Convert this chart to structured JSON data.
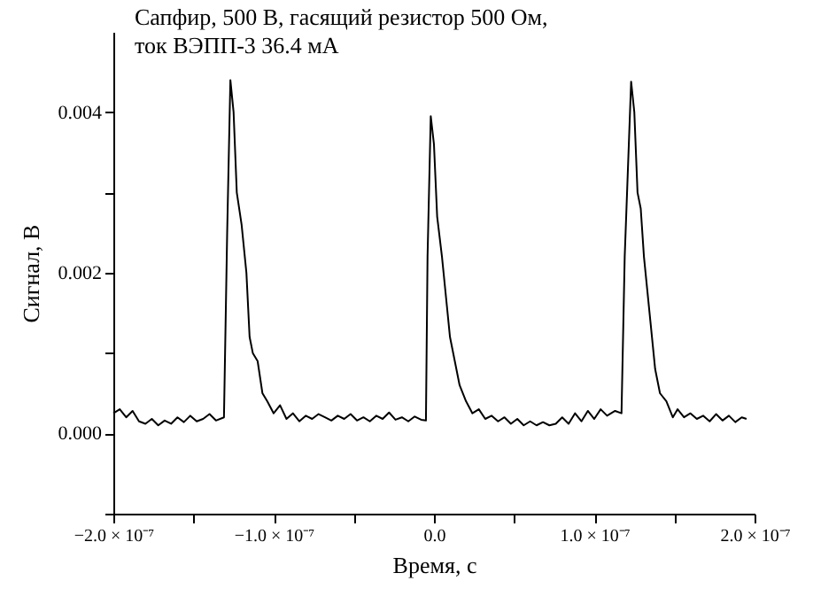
{
  "chart_data": {
    "type": "line",
    "xlabel": "Время, с",
    "ylabel": "Сигнал, В",
    "annotations": [
      "Сапфир, 500 В, гасящий резистор 500 Ом,\nток ВЭПП-3 36.4 мА"
    ],
    "xlim": [
      -2e-07,
      2e-07
    ],
    "ylim": [
      -0.001,
      0.005
    ],
    "xticks": [
      {
        "value": -2e-07,
        "label": "−2.0 × 10⁻⁷"
      },
      {
        "value": -1.5e-07,
        "label": null
      },
      {
        "value": -1e-07,
        "label": "−1.0 × 10⁻⁷"
      },
      {
        "value": -5e-08,
        "label": null
      },
      {
        "value": 0,
        "label": "0.0"
      },
      {
        "value": 5e-08,
        "label": null
      },
      {
        "value": 1e-07,
        "label": "1.0 × 10⁻⁷"
      },
      {
        "value": 1.5e-07,
        "label": null
      },
      {
        "value": 2e-07,
        "label": "2.0 × 10⁻⁷"
      }
    ],
    "yticks": [
      {
        "value": -0.001,
        "label": null
      },
      {
        "value": 0,
        "label": "0.000"
      },
      {
        "value": 0.001,
        "label": null
      },
      {
        "value": 0.002,
        "label": "0.002"
      },
      {
        "value": 0.003,
        "label": null
      },
      {
        "value": 0.004,
        "label": "0.004"
      }
    ],
    "grid": false,
    "marker": "none",
    "line_style": "solid",
    "series": [
      {
        "color": "#000000",
        "x": [
          -2e-07,
          -1.96e-07,
          -1.92e-07,
          -1.88e-07,
          -1.84e-07,
          -1.8e-07,
          -1.76e-07,
          -1.72e-07,
          -1.68e-07,
          -1.64e-07,
          -1.6e-07,
          -1.56e-07,
          -1.52e-07,
          -1.48e-07,
          -1.44e-07,
          -1.4e-07,
          -1.36e-07,
          -1.31e-07,
          -1.29e-07,
          -1.27e-07,
          -1.25e-07,
          -1.23e-07,
          -1.2e-07,
          -1.17e-07,
          -1.15e-07,
          -1.13e-07,
          -1.1e-07,
          -1.07e-07,
          -1.04e-07,
          -1e-07,
          -9.6e-08,
          -9.2e-08,
          -8.8e-08,
          -8.4e-08,
          -8e-08,
          -7.6e-08,
          -7.2e-08,
          -6.8e-08,
          -6.4e-08,
          -6e-08,
          -5.6e-08,
          -5.2e-08,
          -4.8e-08,
          -4.4e-08,
          -4e-08,
          -3.6e-08,
          -3.2e-08,
          -2.8e-08,
          -2.4e-08,
          -2e-08,
          -1.6e-08,
          -1.2e-08,
          -8e-09,
          -5e-09,
          -4e-09,
          -2e-09,
          0.0,
          2e-09,
          5e-09,
          8e-09,
          1e-08,
          1.3e-08,
          1.6e-08,
          2e-08,
          2.4e-08,
          2.8e-08,
          3.2e-08,
          3.6e-08,
          4e-08,
          4.4e-08,
          4.8e-08,
          5.2e-08,
          5.6e-08,
          6e-08,
          6.4e-08,
          6.8e-08,
          7.2e-08,
          7.6e-08,
          8e-08,
          8.4e-08,
          8.8e-08,
          9.2e-08,
          9.6e-08,
          1e-07,
          1.04e-07,
          1.08e-07,
          1.13e-07,
          1.17e-07,
          1.19e-07,
          1.23e-07,
          1.25e-07,
          1.27e-07,
          1.29e-07,
          1.31e-07,
          1.33e-07,
          1.35e-07,
          1.38e-07,
          1.41e-07,
          1.45e-07,
          1.49e-07,
          1.52e-07,
          1.56e-07,
          1.6e-07,
          1.64e-07,
          1.68e-07,
          1.72e-07,
          1.76e-07,
          1.8e-07,
          1.84e-07,
          1.88e-07,
          1.92e-07,
          1.95e-07
        ],
        "values": [
          0.00025,
          0.0003,
          0.0002,
          0.00028,
          0.00015,
          0.00012,
          0.00018,
          0.0001,
          0.00016,
          0.00012,
          0.0002,
          0.00014,
          0.00022,
          0.00015,
          0.00018,
          0.00024,
          0.00016,
          0.0002,
          0.0025,
          0.0044,
          0.004,
          0.003,
          0.0026,
          0.002,
          0.0012,
          0.001,
          0.0009,
          0.0005,
          0.0004,
          0.00025,
          0.00035,
          0.00018,
          0.00025,
          0.00015,
          0.00022,
          0.00018,
          0.00024,
          0.0002,
          0.00016,
          0.00022,
          0.00018,
          0.00024,
          0.00016,
          0.0002,
          0.00015,
          0.00022,
          0.00018,
          0.00026,
          0.00017,
          0.0002,
          0.00015,
          0.00021,
          0.00017,
          0.00016,
          0.0022,
          0.00395,
          0.0036,
          0.0027,
          0.0022,
          0.0016,
          0.0012,
          0.0009,
          0.0006,
          0.0004,
          0.00025,
          0.0003,
          0.00018,
          0.00022,
          0.00015,
          0.0002,
          0.00012,
          0.00018,
          0.0001,
          0.00015,
          0.0001,
          0.00014,
          0.0001,
          0.00012,
          0.0002,
          0.00012,
          0.00025,
          0.00015,
          0.00028,
          0.00018,
          0.0003,
          0.00022,
          0.00028,
          0.00025,
          0.0022,
          0.00438,
          0.004,
          0.003,
          0.0028,
          0.0022,
          0.0018,
          0.0014,
          0.0008,
          0.0005,
          0.0004,
          0.0002,
          0.0003,
          0.0002,
          0.00025,
          0.00018,
          0.00022,
          0.00015,
          0.00024,
          0.00016,
          0.00022,
          0.00014,
          0.0002,
          0.00018
        ]
      }
    ]
  }
}
